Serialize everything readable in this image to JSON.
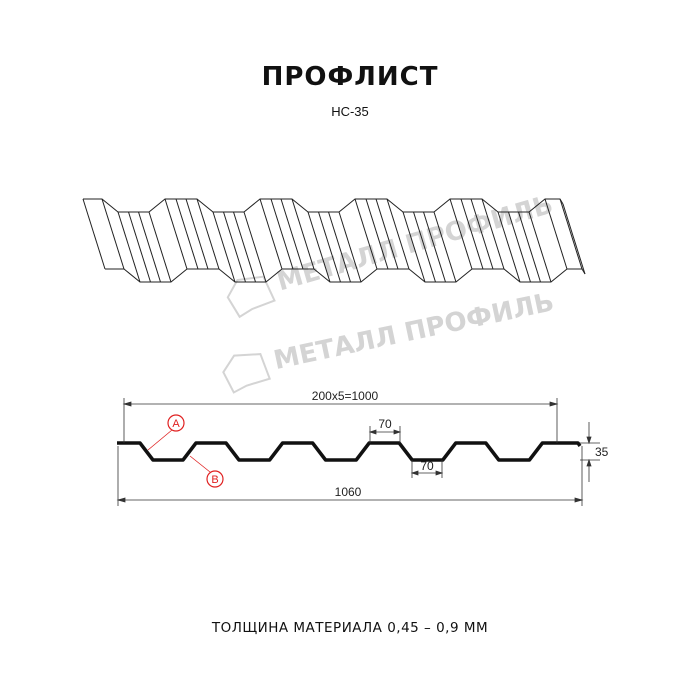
{
  "header": {
    "title": "ПРОФЛИСТ",
    "subtitle": "НС-35"
  },
  "watermark": {
    "text": "МЕТАЛЛ ПРОФИЛЬ",
    "color": "#d4d4d4"
  },
  "section": {
    "dimensions": {
      "pitch_total": "200x5=1000",
      "overall_width": "1060",
      "top_shelf": "70",
      "bottom_shelf": "70",
      "height": "35"
    },
    "callouts": {
      "a": "A",
      "b": "B",
      "color": "#e02020"
    }
  },
  "footer": {
    "thickness": "ТОЛЩИНА МАТЕРИАЛА 0,45 – 0,9 ММ"
  }
}
